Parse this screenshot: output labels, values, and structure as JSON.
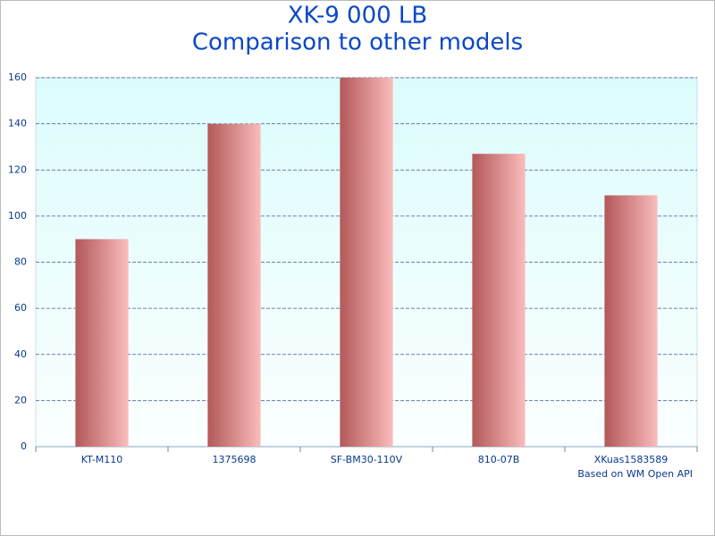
{
  "chart_data": {
    "type": "bar",
    "title": "XK-9 000 LB",
    "subtitle": "Comparison to other models",
    "categories": [
      "KT-M110",
      "1375698",
      "SF-BM30-110V",
      "810-07B",
      "XKuas1583589"
    ],
    "values": [
      90,
      140,
      160,
      127,
      109
    ],
    "gradient": [
      "#b35858",
      "#fbbcbc"
    ],
    "ylim": [
      0,
      160
    ],
    "yticks": [
      0,
      20,
      40,
      60,
      80,
      100,
      120,
      140,
      160
    ],
    "grid": true,
    "annotation": "Based on WM Open API"
  }
}
